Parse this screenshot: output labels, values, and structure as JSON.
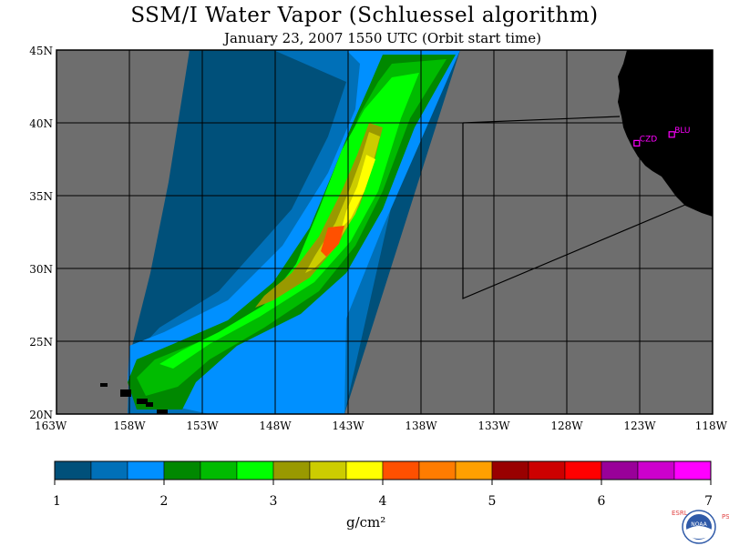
{
  "title": "SSM/I Water Vapor (Schluessel algorithm)",
  "subtitle": "January 23, 2007  1550 UTC  (Orbit start time)",
  "map": {
    "lon_range": [
      -163,
      -118
    ],
    "lat_range": [
      20,
      45
    ],
    "lat_labels": [
      "20N",
      "25N",
      "30N",
      "35N",
      "40N",
      "45N"
    ],
    "lat_values": [
      20,
      25,
      30,
      35,
      40,
      45
    ],
    "lon_labels": [
      "163W",
      "158W",
      "153W",
      "148W",
      "143W",
      "138W",
      "133W",
      "128W",
      "123W",
      "118W"
    ],
    "lon_values": [
      -163,
      -158,
      -153,
      -148,
      -143,
      -138,
      -133,
      -128,
      -123,
      -118
    ],
    "no_data_color": "#6e6e6e",
    "land_color": "#000000",
    "grid_color": "#000000",
    "stations": [
      {
        "label": "CZD",
        "lat": 38.6,
        "lon": -123.2
      },
      {
        "label": "BLU",
        "lat": 39.2,
        "lon": -120.8
      }
    ],
    "station_color": "#ff00ff"
  },
  "colorbar": {
    "colors": [
      "#00507a",
      "#0070b8",
      "#0090ff",
      "#008800",
      "#00bb00",
      "#00ff00",
      "#999900",
      "#cccc00",
      "#ffff00",
      "#ff5000",
      "#ff7c00",
      "#ffa000",
      "#990000",
      "#cc0000",
      "#ff0000",
      "#990099",
      "#cc00cc",
      "#ff00ff"
    ],
    "labels": [
      "1",
      "2",
      "3",
      "4",
      "5",
      "6",
      "7"
    ],
    "min": 1,
    "max": 7,
    "units": "g/cm²"
  },
  "logo": {
    "text": "NOAA",
    "left_letters": "ESRL",
    "right_letters": "PSD"
  }
}
